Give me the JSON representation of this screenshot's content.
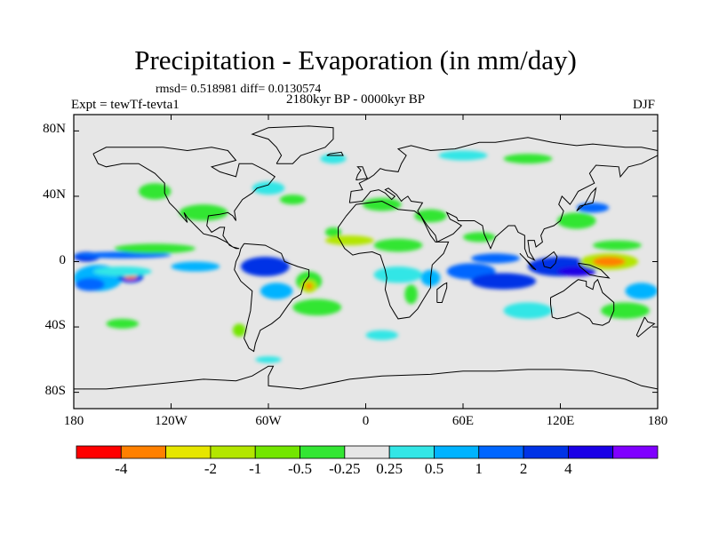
{
  "title": "Precipitation - Evaporation (in mm/day)",
  "stats": "rmsd= 0.518981 diff= 0.0130574",
  "experiment": "Expt = tewTf-tevta1",
  "period": "2180kyr BP - 0000kyr BP",
  "season": "DJF",
  "map": {
    "projection": "cylindrical-equidistant",
    "lon_range": [
      -180,
      180
    ],
    "lat_range": [
      -90,
      90
    ],
    "background_color": "#e6e6e6",
    "coastline_color": "#000000",
    "lat_ticks": [
      {
        "lat": 80,
        "label": "80N"
      },
      {
        "lat": 40,
        "label": "40N"
      },
      {
        "lat": 0,
        "label": "0"
      },
      {
        "lat": -40,
        "label": "40S"
      },
      {
        "lat": -80,
        "label": "80S"
      }
    ],
    "lon_ticks": [
      {
        "lon": -180,
        "label": "180"
      },
      {
        "lon": -120,
        "label": "120W"
      },
      {
        "lon": -60,
        "label": "60W"
      },
      {
        "lon": 0,
        "label": "0"
      },
      {
        "lon": 60,
        "label": "60E"
      },
      {
        "lon": 120,
        "label": "120E"
      },
      {
        "lon": 180,
        "label": "180"
      }
    ]
  },
  "colorbar": {
    "colors": [
      "#ff0000",
      "#ff8000",
      "#e6e600",
      "#b3e600",
      "#73e600",
      "#33e633",
      "#e6e6e6",
      "#33e6e6",
      "#00b3ff",
      "#0066ff",
      "#0033e6",
      "#1a00e6",
      "#8000ff"
    ],
    "labels": [
      "-4",
      "-2",
      "-1",
      "-0.5",
      "-0.25",
      "0.25",
      "0.5",
      "1",
      "2",
      "4"
    ],
    "label_boundaries": [
      1,
      3,
      4,
      5,
      6,
      7,
      8,
      9,
      10,
      11
    ]
  },
  "field_anomalies": [
    {
      "lon": -165,
      "lat": -10,
      "rlon": 15,
      "rlat": 8,
      "level": 8
    },
    {
      "lon": -145,
      "lat": -9,
      "rlon": 8,
      "rlat": 4,
      "level": 10
    },
    {
      "lon": -145,
      "lat": -9,
      "rlon": 4,
      "rlat": 2,
      "level": 1
    },
    {
      "lon": -145,
      "lat": -9,
      "rlon": 2,
      "rlat": 1,
      "level": 0
    },
    {
      "lon": -170,
      "lat": -14,
      "rlon": 9,
      "rlat": 4,
      "level": 9
    },
    {
      "lon": -150,
      "lat": -6,
      "rlon": 18,
      "rlat": 3,
      "level": 7
    },
    {
      "lon": -172,
      "lat": 3,
      "rlon": 8,
      "rlat": 3,
      "level": 10
    },
    {
      "lon": -150,
      "lat": 4,
      "rlon": 30,
      "rlat": 2,
      "level": 9
    },
    {
      "lon": -130,
      "lat": 8,
      "rlon": 25,
      "rlat": 3,
      "level": 5
    },
    {
      "lon": -105,
      "lat": -3,
      "rlon": 15,
      "rlat": 3,
      "level": 8
    },
    {
      "lon": -62,
      "lat": -3,
      "rlon": 15,
      "rlat": 6,
      "level": 10
    },
    {
      "lon": -55,
      "lat": -18,
      "rlon": 10,
      "rlat": 5,
      "level": 8
    },
    {
      "lon": -35,
      "lat": -12,
      "rlon": 8,
      "rlat": 6,
      "level": 5
    },
    {
      "lon": -35,
      "lat": -15,
      "rlon": 5,
      "rlat": 4,
      "level": 3
    },
    {
      "lon": -35,
      "lat": -15,
      "rlon": 2,
      "rlat": 2,
      "level": 1
    },
    {
      "lon": -30,
      "lat": -28,
      "rlon": 15,
      "rlat": 5,
      "level": 5
    },
    {
      "lon": -100,
      "lat": 30,
      "rlon": 15,
      "rlat": 5,
      "level": 5
    },
    {
      "lon": -130,
      "lat": 43,
      "rlon": 10,
      "rlat": 5,
      "level": 5
    },
    {
      "lon": -45,
      "lat": 38,
      "rlon": 8,
      "rlat": 3,
      "level": 5
    },
    {
      "lon": -20,
      "lat": 18,
      "rlon": 5,
      "rlat": 3,
      "level": 5
    },
    {
      "lon": -10,
      "lat": 13,
      "rlon": 15,
      "rlat": 3,
      "level": 3
    },
    {
      "lon": 20,
      "lat": 10,
      "rlon": 15,
      "rlat": 4,
      "level": 5
    },
    {
      "lon": 10,
      "lat": 35,
      "rlon": 12,
      "rlat": 4,
      "level": 5
    },
    {
      "lon": 40,
      "lat": 28,
      "rlon": 10,
      "rlat": 4,
      "level": 5
    },
    {
      "lon": 70,
      "lat": 15,
      "rlon": 10,
      "rlat": 3,
      "level": 5
    },
    {
      "lon": 20,
      "lat": -8,
      "rlon": 15,
      "rlat": 5,
      "level": 7
    },
    {
      "lon": 28,
      "lat": -20,
      "rlon": 4,
      "rlat": 6,
      "level": 5
    },
    {
      "lon": 40,
      "lat": -10,
      "rlon": 6,
      "rlat": 5,
      "level": 8
    },
    {
      "lon": 65,
      "lat": -6,
      "rlon": 15,
      "rlat": 5,
      "level": 9
    },
    {
      "lon": 85,
      "lat": -12,
      "rlon": 20,
      "rlat": 5,
      "level": 10
    },
    {
      "lon": 80,
      "lat": 2,
      "rlon": 15,
      "rlat": 3,
      "level": 9
    },
    {
      "lon": 120,
      "lat": -3,
      "rlon": 20,
      "rlat": 6,
      "level": 10
    },
    {
      "lon": 130,
      "lat": -6,
      "rlon": 12,
      "rlat": 3,
      "level": 11
    },
    {
      "lon": 150,
      "lat": 0,
      "rlon": 18,
      "rlat": 5,
      "level": 3
    },
    {
      "lon": 150,
      "lat": 0,
      "rlon": 10,
      "rlat": 3,
      "level": 1
    },
    {
      "lon": 155,
      "lat": 10,
      "rlon": 15,
      "rlat": 3,
      "level": 5
    },
    {
      "lon": 130,
      "lat": 25,
      "rlon": 12,
      "rlat": 5,
      "level": 5
    },
    {
      "lon": 140,
      "lat": 33,
      "rlon": 10,
      "rlat": 3,
      "level": 9
    },
    {
      "lon": 170,
      "lat": -18,
      "rlon": 10,
      "rlat": 5,
      "level": 8
    },
    {
      "lon": 160,
      "lat": -30,
      "rlon": 15,
      "rlat": 5,
      "level": 5
    },
    {
      "lon": 100,
      "lat": -30,
      "rlon": 15,
      "rlat": 5,
      "level": 7
    },
    {
      "lon": -60,
      "lat": 45,
      "rlon": 10,
      "rlat": 4,
      "level": 7
    },
    {
      "lon": 60,
      "lat": 65,
      "rlon": 15,
      "rlat": 3,
      "level": 7
    },
    {
      "lon": 100,
      "lat": 63,
      "rlon": 15,
      "rlat": 3,
      "level": 5
    },
    {
      "lon": -20,
      "lat": 63,
      "rlon": 8,
      "rlat": 3,
      "level": 7
    },
    {
      "lon": -78,
      "lat": -42,
      "rlon": 4,
      "rlat": 4,
      "level": 4
    },
    {
      "lon": 10,
      "lat": -45,
      "rlon": 10,
      "rlat": 3,
      "level": 7
    },
    {
      "lon": -150,
      "lat": -38,
      "rlon": 10,
      "rlat": 3,
      "level": 5
    },
    {
      "lon": -60,
      "lat": -60,
      "rlon": 8,
      "rlat": 2,
      "level": 7
    }
  ],
  "coastlines": [
    [
      [
        -168,
        66
      ],
      [
        -160,
        70
      ],
      [
        -140,
        70
      ],
      [
        -125,
        70
      ],
      [
        -110,
        68
      ],
      [
        -95,
        70
      ],
      [
        -85,
        68
      ],
      [
        -80,
        62
      ],
      [
        -95,
        58
      ],
      [
        -90,
        55
      ],
      [
        -80,
        52
      ],
      [
        -78,
        60
      ],
      [
        -70,
        60
      ],
      [
        -62,
        56
      ],
      [
        -56,
        52
      ],
      [
        -60,
        47
      ],
      [
        -67,
        45
      ],
      [
        -70,
        42
      ],
      [
        -76,
        38
      ],
      [
        -81,
        31
      ],
      [
        -80,
        25
      ],
      [
        -82,
        28
      ],
      [
        -85,
        30
      ],
      [
        -90,
        29
      ],
      [
        -97,
        28
      ],
      [
        -98,
        22
      ],
      [
        -95,
        18
      ],
      [
        -90,
        21
      ],
      [
        -87,
        21
      ],
      [
        -88,
        16
      ],
      [
        -84,
        10
      ],
      [
        -80,
        8
      ],
      [
        -78,
        8
      ],
      [
        -82,
        9
      ],
      [
        -86,
        12
      ],
      [
        -92,
        15
      ],
      [
        -100,
        17
      ],
      [
        -106,
        23
      ],
      [
        -110,
        27
      ],
      [
        -112,
        30
      ],
      [
        -110,
        24
      ],
      [
        -117,
        32
      ],
      [
        -121,
        36
      ],
      [
        -124,
        42
      ],
      [
        -124,
        48
      ],
      [
        -130,
        54
      ],
      [
        -140,
        60
      ],
      [
        -150,
        60
      ],
      [
        -160,
        58
      ],
      [
        -165,
        60
      ],
      [
        -168,
        66
      ]
    ],
    [
      [
        -75,
        11
      ],
      [
        -62,
        10
      ],
      [
        -52,
        5
      ],
      [
        -50,
        0
      ],
      [
        -42,
        -3
      ],
      [
        -35,
        -5
      ],
      [
        -35,
        -9
      ],
      [
        -38,
        -13
      ],
      [
        -40,
        -20
      ],
      [
        -45,
        -23
      ],
      [
        -48,
        -27
      ],
      [
        -53,
        -34
      ],
      [
        -58,
        -38
      ],
      [
        -65,
        -42
      ],
      [
        -68,
        -50
      ],
      [
        -69,
        -55
      ],
      [
        -72,
        -53
      ],
      [
        -75,
        -47
      ],
      [
        -73,
        -38
      ],
      [
        -71,
        -30
      ],
      [
        -70,
        -18
      ],
      [
        -77,
        -12
      ],
      [
        -81,
        -5
      ],
      [
        -80,
        0
      ],
      [
        -78,
        4
      ],
      [
        -77,
        8
      ],
      [
        -75,
        11
      ]
    ],
    [
      [
        -17,
        15
      ],
      [
        -17,
        21
      ],
      [
        -12,
        28
      ],
      [
        -6,
        35
      ],
      [
        10,
        37
      ],
      [
        20,
        32
      ],
      [
        30,
        31
      ],
      [
        34,
        28
      ],
      [
        40,
        16
      ],
      [
        43,
        12
      ],
      [
        51,
        12
      ],
      [
        48,
        5
      ],
      [
        41,
        -2
      ],
      [
        40,
        -10
      ],
      [
        40,
        -16
      ],
      [
        35,
        -24
      ],
      [
        32,
        -29
      ],
      [
        27,
        -34
      ],
      [
        20,
        -35
      ],
      [
        18,
        -32
      ],
      [
        15,
        -27
      ],
      [
        12,
        -17
      ],
      [
        13,
        -10
      ],
      [
        12,
        -5
      ],
      [
        9,
        4
      ],
      [
        4,
        6
      ],
      [
        -4,
        5
      ],
      [
        -8,
        4
      ],
      [
        -13,
        8
      ],
      [
        -17,
        15
      ]
    ],
    [
      [
        -10,
        36
      ],
      [
        -9,
        43
      ],
      [
        -2,
        44
      ],
      [
        -4,
        48
      ],
      [
        2,
        51
      ],
      [
        5,
        53
      ],
      [
        9,
        57
      ],
      [
        12,
        56
      ],
      [
        20,
        55
      ],
      [
        22,
        60
      ],
      [
        25,
        65
      ],
      [
        20,
        69
      ],
      [
        28,
        71
      ],
      [
        40,
        68
      ],
      [
        55,
        69
      ],
      [
        70,
        73
      ],
      [
        80,
        73
      ],
      [
        100,
        76
      ],
      [
        115,
        73
      ],
      [
        130,
        71
      ],
      [
        140,
        72
      ],
      [
        160,
        70
      ],
      [
        170,
        70
      ],
      [
        180,
        68
      ],
      [
        180,
        65
      ],
      [
        170,
        60
      ],
      [
        162,
        58
      ],
      [
        157,
        52
      ],
      [
        156,
        58
      ],
      [
        142,
        59
      ],
      [
        138,
        54
      ],
      [
        141,
        48
      ],
      [
        131,
        43
      ],
      [
        128,
        38
      ],
      [
        126,
        35
      ],
      [
        121,
        40
      ],
      [
        119,
        35
      ],
      [
        122,
        31
      ],
      [
        120,
        25
      ],
      [
        116,
        22
      ],
      [
        110,
        20
      ],
      [
        108,
        16
      ],
      [
        109,
        12
      ],
      [
        105,
        9
      ],
      [
        104,
        13
      ],
      [
        100,
        13
      ],
      [
        101,
        6
      ],
      [
        104,
        1
      ],
      [
        100,
        3
      ],
      [
        98,
        8
      ],
      [
        98,
        16
      ],
      [
        94,
        18
      ],
      [
        92,
        22
      ],
      [
        88,
        22
      ],
      [
        80,
        15
      ],
      [
        77,
        8
      ],
      [
        73,
        17
      ],
      [
        72,
        22
      ],
      [
        67,
        25
      ],
      [
        57,
        25
      ],
      [
        56,
        27
      ],
      [
        50,
        30
      ],
      [
        52,
        26
      ],
      [
        56,
        24
      ],
      [
        59,
        22
      ],
      [
        54,
        17
      ],
      [
        44,
        12
      ],
      [
        43,
        16
      ],
      [
        38,
        22
      ],
      [
        34,
        28
      ],
      [
        32,
        31
      ],
      [
        35,
        36
      ],
      [
        28,
        37
      ],
      [
        26,
        40
      ],
      [
        23,
        38
      ],
      [
        22,
        37
      ],
      [
        19,
        41
      ],
      [
        14,
        45
      ],
      [
        12,
        44
      ],
      [
        18,
        40
      ],
      [
        16,
        38
      ],
      [
        12,
        42
      ],
      [
        8,
        44
      ],
      [
        3,
        43
      ],
      [
        -2,
        37
      ],
      [
        -10,
        36
      ]
    ],
    [
      [
        114,
        -22
      ],
      [
        114,
        -26
      ],
      [
        115,
        -34
      ],
      [
        118,
        -35
      ],
      [
        123,
        -34
      ],
      [
        131,
        -31
      ],
      [
        138,
        -35
      ],
      [
        140,
        -38
      ],
      [
        146,
        -39
      ],
      [
        150,
        -37
      ],
      [
        153,
        -30
      ],
      [
        153,
        -25
      ],
      [
        146,
        -19
      ],
      [
        143,
        -11
      ],
      [
        141,
        -13
      ],
      [
        140,
        -17
      ],
      [
        136,
        -15
      ],
      [
        136,
        -12
      ],
      [
        131,
        -11
      ],
      [
        127,
        -14
      ],
      [
        122,
        -18
      ],
      [
        114,
        -22
      ]
    ],
    [
      [
        -55,
        60
      ],
      [
        -45,
        60
      ],
      [
        -40,
        65
      ],
      [
        -25,
        70
      ],
      [
        -20,
        75
      ],
      [
        -20,
        82
      ],
      [
        -35,
        83
      ],
      [
        -60,
        82
      ],
      [
        -70,
        78
      ],
      [
        -60,
        75
      ],
      [
        -55,
        70
      ],
      [
        -52,
        65
      ],
      [
        -55,
        60
      ]
    ],
    [
      [
        -180,
        -78
      ],
      [
        -160,
        -78
      ],
      [
        -140,
        -76
      ],
      [
        -120,
        -74
      ],
      [
        -100,
        -72
      ],
      [
        -80,
        -73
      ],
      [
        -70,
        -70
      ],
      [
        -60,
        -64
      ],
      [
        -57,
        -64
      ],
      [
        -60,
        -70
      ],
      [
        -60,
        -76
      ],
      [
        -40,
        -78
      ],
      [
        -30,
        -76
      ],
      [
        -10,
        -72
      ],
      [
        10,
        -70
      ],
      [
        40,
        -69
      ],
      [
        60,
        -67
      ],
      [
        80,
        -67
      ],
      [
        100,
        -66
      ],
      [
        120,
        -66
      ],
      [
        140,
        -67
      ],
      [
        160,
        -72
      ],
      [
        170,
        -76
      ],
      [
        180,
        -78
      ]
    ],
    [
      [
        44,
        -25
      ],
      [
        47,
        -25
      ],
      [
        50,
        -16
      ],
      [
        50,
        -13
      ],
      [
        48,
        -14
      ],
      [
        44,
        -17
      ],
      [
        44,
        -25
      ]
    ],
    [
      [
        95,
        5
      ],
      [
        100,
        0
      ],
      [
        105,
        -5
      ],
      [
        103,
        -4
      ],
      [
        98,
        2
      ],
      [
        95,
        5
      ]
    ],
    [
      [
        109,
        1
      ],
      [
        110,
        -3
      ],
      [
        114,
        -4
      ],
      [
        117,
        -1
      ],
      [
        118,
        3
      ],
      [
        116,
        6
      ],
      [
        112,
        3
      ],
      [
        109,
        1
      ]
    ],
    [
      [
        131,
        -1
      ],
      [
        138,
        -2
      ],
      [
        145,
        -5
      ],
      [
        150,
        -10
      ],
      [
        143,
        -9
      ],
      [
        138,
        -8
      ],
      [
        132,
        -3
      ],
      [
        131,
        -1
      ]
    ],
    [
      [
        130,
        31
      ],
      [
        132,
        34
      ],
      [
        136,
        35
      ],
      [
        140,
        36
      ],
      [
        141,
        40
      ],
      [
        142,
        45
      ],
      [
        139,
        42
      ],
      [
        135,
        35
      ],
      [
        130,
        31
      ]
    ],
    [
      [
        -6,
        50
      ],
      [
        -5,
        53
      ],
      [
        -3,
        56
      ],
      [
        -5,
        58
      ],
      [
        -2,
        58
      ],
      [
        0,
        53
      ],
      [
        1,
        51
      ],
      [
        -6,
        50
      ]
    ],
    [
      [
        172,
        -34
      ],
      [
        174,
        -37
      ],
      [
        178,
        -38
      ],
      [
        174,
        -41
      ],
      [
        168,
        -46
      ],
      [
        167,
        -45
      ],
      [
        172,
        -34
      ]
    ],
    [
      [
        -24,
        65
      ],
      [
        -14,
        65
      ],
      [
        -15,
        67
      ],
      [
        -22,
        66
      ],
      [
        -24,
        65
      ]
    ]
  ]
}
